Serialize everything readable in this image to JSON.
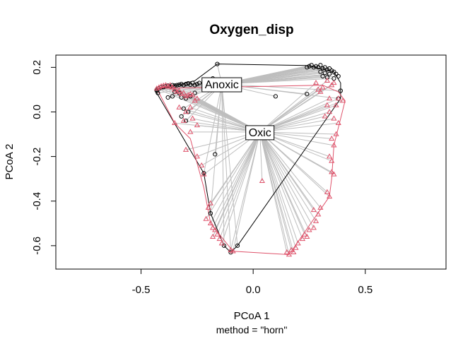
{
  "chart_data": {
    "type": "scatter",
    "title": "Oxygen_disp",
    "xlabel": "PCoA 1",
    "ylabel": "PCoA 2",
    "subtitle": "method = \"horn\"",
    "xlim": [
      -0.88,
      0.86
    ],
    "ylim": [
      -0.705,
      0.255
    ],
    "xticks": [
      -0.5,
      0.0,
      0.5
    ],
    "yticks": [
      -0.6,
      -0.4,
      -0.2,
      0.0,
      0.2
    ],
    "xtick_labels": [
      "-0.5",
      "0.0",
      "0.5"
    ],
    "ytick_labels": [
      "-0.6",
      "-0.4",
      "-0.2",
      "0.0",
      "0.2"
    ],
    "grid": false,
    "series": [
      {
        "name": "Anoxic",
        "marker": "circle",
        "color": "#000000",
        "centroid": [
          -0.14,
          0.125
        ],
        "points": [
          [
            -0.43,
            0.095
          ],
          [
            -0.43,
            0.1
          ],
          [
            -0.425,
            0.085
          ],
          [
            -0.42,
            0.105
          ],
          [
            -0.41,
            0.11
          ],
          [
            -0.4,
            0.112
          ],
          [
            -0.39,
            0.115
          ],
          [
            -0.38,
            0.118
          ],
          [
            -0.37,
            0.115
          ],
          [
            -0.36,
            0.12
          ],
          [
            -0.35,
            0.118
          ],
          [
            -0.34,
            0.12
          ],
          [
            -0.33,
            0.122
          ],
          [
            -0.32,
            0.125
          ],
          [
            -0.31,
            0.12
          ],
          [
            -0.3,
            0.125
          ],
          [
            -0.29,
            0.128
          ],
          [
            -0.28,
            0.122
          ],
          [
            -0.27,
            0.13
          ],
          [
            -0.26,
            0.12
          ],
          [
            -0.25,
            0.125
          ],
          [
            -0.24,
            0.13
          ],
          [
            -0.22,
            0.14
          ],
          [
            -0.18,
            0.15
          ],
          [
            -0.16,
            0.215
          ],
          [
            -0.38,
            0.065
          ],
          [
            -0.36,
            0.07
          ],
          [
            -0.32,
            0.065
          ],
          [
            -0.3,
            0.06
          ],
          [
            -0.28,
            0.07
          ],
          [
            -0.35,
            0.09
          ],
          [
            -0.33,
            0.085
          ],
          [
            -0.26,
            0.085
          ],
          [
            -0.31,
            0.015
          ],
          [
            -0.29,
            0.0
          ],
          [
            -0.32,
            -0.02
          ],
          [
            -0.3,
            -0.04
          ],
          [
            -0.17,
            -0.19
          ],
          [
            -0.22,
            -0.275
          ],
          [
            -0.19,
            -0.455
          ],
          [
            -0.13,
            -0.6
          ],
          [
            -0.07,
            -0.6
          ],
          [
            -0.1,
            -0.63
          ],
          [
            0.1,
            0.07
          ],
          [
            0.24,
            0.08
          ],
          [
            0.24,
            0.2
          ],
          [
            0.25,
            0.205
          ],
          [
            0.26,
            0.21
          ],
          [
            0.27,
            0.2
          ],
          [
            0.28,
            0.205
          ],
          [
            0.29,
            0.2
          ],
          [
            0.3,
            0.21
          ],
          [
            0.31,
            0.195
          ],
          [
            0.32,
            0.2
          ],
          [
            0.33,
            0.19
          ],
          [
            0.34,
            0.195
          ],
          [
            0.35,
            0.185
          ],
          [
            0.36,
            0.18
          ],
          [
            0.37,
            0.17
          ],
          [
            0.38,
            0.16
          ],
          [
            0.3,
            0.18
          ],
          [
            0.32,
            0.175
          ],
          [
            0.34,
            0.17
          ],
          [
            0.36,
            0.15
          ],
          [
            0.39,
            0.095
          ],
          [
            0.38,
            0.06
          ],
          [
            0.31,
            0.16
          ],
          [
            0.33,
            0.155
          ]
        ]
      },
      {
        "name": "Oxic",
        "marker": "triangle",
        "color": "#DF536B",
        "centroid": [
          0.03,
          -0.09
        ],
        "points": [
          [
            -0.43,
            0.105
          ],
          [
            -0.42,
            0.11
          ],
          [
            -0.41,
            0.115
          ],
          [
            -0.4,
            0.118
          ],
          [
            -0.39,
            0.12
          ],
          [
            -0.38,
            0.115
          ],
          [
            -0.37,
            0.12
          ],
          [
            -0.36,
            0.11
          ],
          [
            -0.35,
            0.1
          ],
          [
            -0.34,
            0.09
          ],
          [
            -0.33,
            0.095
          ],
          [
            -0.32,
            0.08
          ],
          [
            -0.31,
            0.085
          ],
          [
            -0.3,
            0.07
          ],
          [
            -0.29,
            0.075
          ],
          [
            -0.28,
            0.08
          ],
          [
            -0.27,
            0.075
          ],
          [
            -0.25,
            0.06
          ],
          [
            -0.26,
            0.05
          ],
          [
            -0.3,
            0.0
          ],
          [
            -0.28,
            0.02
          ],
          [
            -0.33,
            0.02
          ],
          [
            -0.35,
            -0.05
          ],
          [
            -0.31,
            -0.04
          ],
          [
            -0.27,
            -0.03
          ],
          [
            -0.25,
            -0.06
          ],
          [
            -0.28,
            -0.09
          ],
          [
            -0.3,
            -0.17
          ],
          [
            -0.25,
            -0.2
          ],
          [
            -0.23,
            -0.24
          ],
          [
            -0.22,
            -0.28
          ],
          [
            -0.19,
            -0.41
          ],
          [
            -0.2,
            -0.43
          ],
          [
            -0.21,
            -0.48
          ],
          [
            -0.19,
            -0.5
          ],
          [
            -0.18,
            -0.52
          ],
          [
            -0.17,
            -0.53
          ],
          [
            -0.16,
            -0.55
          ],
          [
            -0.18,
            -0.56
          ],
          [
            -0.15,
            -0.57
          ],
          [
            -0.14,
            -0.59
          ],
          [
            -0.1,
            -0.62
          ],
          [
            -0.09,
            -0.625
          ],
          [
            0.04,
            -0.31
          ],
          [
            0.15,
            -0.63
          ],
          [
            0.16,
            -0.64
          ],
          [
            0.17,
            -0.62
          ],
          [
            0.18,
            -0.63
          ],
          [
            0.19,
            -0.61
          ],
          [
            0.2,
            -0.59
          ],
          [
            0.22,
            -0.57
          ],
          [
            0.24,
            -0.56
          ],
          [
            0.25,
            -0.53
          ],
          [
            0.23,
            -0.55
          ],
          [
            0.27,
            -0.52
          ],
          [
            0.28,
            -0.49
          ],
          [
            0.29,
            -0.46
          ],
          [
            0.27,
            -0.44
          ],
          [
            0.3,
            -0.43
          ],
          [
            0.33,
            -0.36
          ],
          [
            0.34,
            -0.38
          ],
          [
            0.35,
            -0.27
          ],
          [
            0.36,
            -0.28
          ],
          [
            0.35,
            -0.22
          ],
          [
            0.34,
            -0.2
          ],
          [
            0.36,
            -0.15
          ],
          [
            0.35,
            -0.12
          ],
          [
            0.37,
            -0.1
          ],
          [
            0.38,
            -0.05
          ],
          [
            0.36,
            -0.03
          ],
          [
            0.32,
            -0.02
          ],
          [
            0.34,
            0.0
          ],
          [
            0.33,
            0.03
          ],
          [
            0.37,
            0.03
          ],
          [
            0.38,
            0.06
          ],
          [
            0.4,
            0.05
          ],
          [
            0.34,
            0.06
          ],
          [
            0.3,
            0.09
          ],
          [
            0.29,
            0.1
          ],
          [
            0.31,
            0.11
          ],
          [
            0.35,
            0.12
          ],
          [
            0.28,
            0.13
          ],
          [
            0.33,
            0.14
          ],
          [
            0.36,
            0.13
          ]
        ]
      }
    ],
    "hulls": [
      {
        "series": "Anoxic",
        "points": [
          [
            -0.16,
            0.215
          ],
          [
            0.24,
            0.208
          ],
          [
            0.36,
            0.18
          ],
          [
            0.39,
            0.13
          ],
          [
            0.39,
            0.06
          ],
          [
            -0.07,
            -0.6
          ],
          [
            -0.1,
            -0.63
          ],
          [
            -0.13,
            -0.6
          ],
          [
            -0.19,
            -0.455
          ],
          [
            -0.22,
            -0.275
          ],
          [
            -0.43,
            0.085
          ],
          [
            -0.43,
            0.1
          ],
          [
            -0.26,
            0.14
          ]
        ]
      },
      {
        "series": "Oxic",
        "points": [
          [
            -0.43,
            0.105
          ],
          [
            0.31,
            0.12
          ],
          [
            0.38,
            0.09
          ],
          [
            0.41,
            0.05
          ],
          [
            0.36,
            -0.15
          ],
          [
            0.35,
            -0.3
          ],
          [
            0.34,
            -0.38
          ],
          [
            0.16,
            -0.64
          ],
          [
            -0.09,
            -0.625
          ],
          [
            -0.19,
            -0.5
          ],
          [
            -0.22,
            -0.34
          ],
          [
            -0.28,
            -0.12
          ],
          [
            -0.35,
            -0.05
          ]
        ]
      }
    ]
  }
}
